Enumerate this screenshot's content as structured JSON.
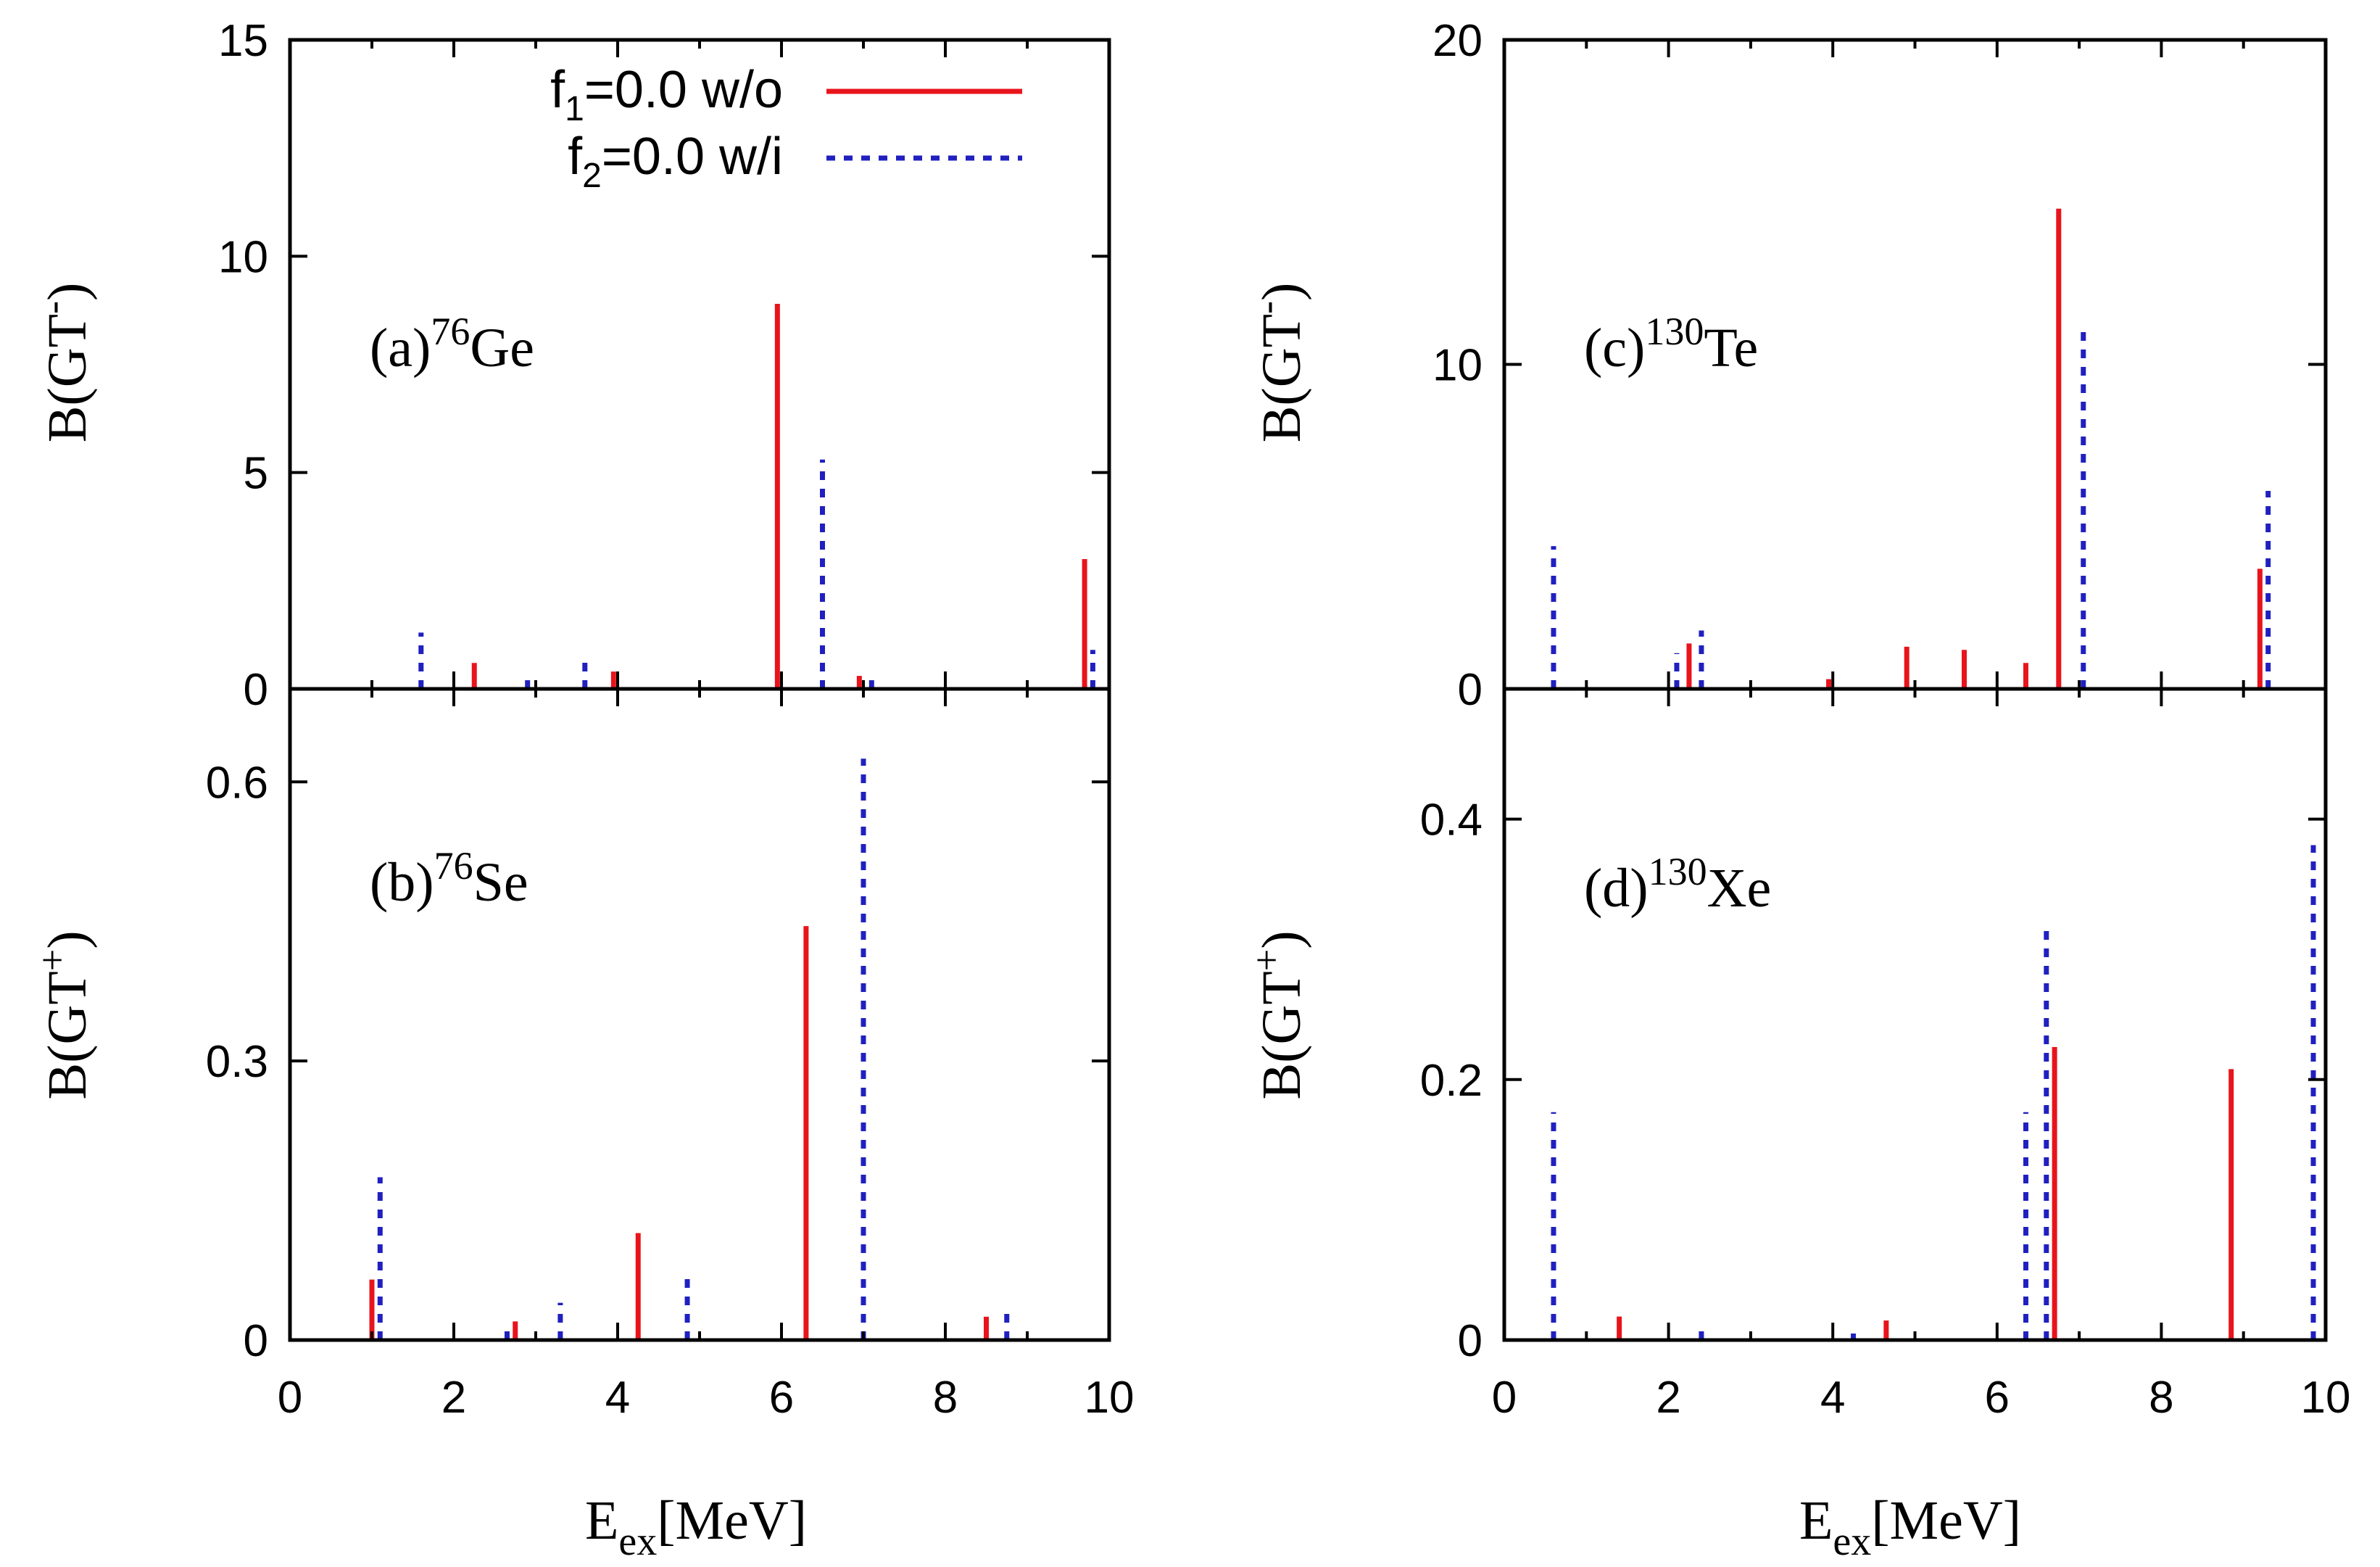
{
  "colors": {
    "series1": "#e8141c",
    "series2": "#2020c0",
    "axis": "#000000"
  },
  "legend": {
    "entries": [
      {
        "main": "f",
        "sub": "1",
        "rest": "=0.0 w/o",
        "series": 0
      },
      {
        "main": "f",
        "sub": "2",
        "rest": "=0.0  w/i",
        "series": 1
      }
    ]
  },
  "x_axis_title": {
    "main": "E",
    "sub": "ex",
    "rest": "[MeV]"
  },
  "chart_data": [
    {
      "type": "bar",
      "id": "a",
      "label_prefix": "(a)",
      "label_sup": "76",
      "label_elem": "Ge",
      "ylabel_main": "B(GT",
      "ylabel_sup": "-",
      "ylabel_end": ")",
      "xlim": [
        0,
        10
      ],
      "ylim": [
        0,
        15
      ],
      "xticks": [
        "0",
        "2",
        "4",
        "6",
        "8",
        "10"
      ],
      "yticks": [
        0,
        5,
        10,
        15
      ],
      "yticklabels": [
        "0",
        "5",
        "10",
        "15"
      ],
      "series": [
        {
          "name": "f1=0.0 w/o",
          "style": "solid",
          "x": [
            2.25,
            3.95,
            5.95,
            6.95,
            9.7
          ],
          "values": [
            0.6,
            0.4,
            8.9,
            0.3,
            3.0
          ]
        },
        {
          "name": "f2=0.0 w/i",
          "style": "dotted",
          "x": [
            1.6,
            2.9,
            3.6,
            6.5,
            7.1,
            9.8
          ],
          "values": [
            1.3,
            0.2,
            0.8,
            5.3,
            0.2,
            0.9
          ]
        }
      ]
    },
    {
      "type": "bar",
      "id": "b",
      "label_prefix": "(b)",
      "label_sup": "76",
      "label_elem": "Se",
      "ylabel_main": "B(GT",
      "ylabel_sup": "+",
      "ylabel_end": ")",
      "xlim": [
        0,
        10
      ],
      "ylim": [
        0,
        0.7
      ],
      "xticks": [
        "0",
        "2",
        "4",
        "6",
        "8",
        "10"
      ],
      "yticks": [
        0,
        0.3,
        0.6
      ],
      "yticklabels": [
        "0",
        "0.3",
        "0.6"
      ],
      "series": [
        {
          "name": "f1=0.0 w/o",
          "style": "solid",
          "x": [
            1.0,
            2.75,
            4.25,
            6.3,
            8.5
          ],
          "values": [
            0.065,
            0.02,
            0.115,
            0.445,
            0.025
          ]
        },
        {
          "name": "f2=0.0 w/i",
          "style": "dotted",
          "x": [
            1.1,
            2.65,
            3.3,
            4.85,
            7.0,
            8.75
          ],
          "values": [
            0.175,
            0.01,
            0.04,
            0.07,
            0.625,
            0.03
          ]
        }
      ]
    },
    {
      "type": "bar",
      "id": "c",
      "label_prefix": "(c)",
      "label_sup": "130",
      "label_elem": "Te",
      "ylabel_main": "B(GT",
      "ylabel_sup": "-",
      "ylabel_end": ")",
      "xlim": [
        0,
        10
      ],
      "ylim": [
        0,
        20
      ],
      "xticks": [
        "0",
        "2",
        "4",
        "6",
        "8",
        "10"
      ],
      "yticks": [
        0,
        10,
        20
      ],
      "yticklabels": [
        "0",
        "10",
        "20"
      ],
      "series": [
        {
          "name": "f1=0.0 w/o",
          "style": "solid",
          "x": [
            2.25,
            3.95,
            4.9,
            5.6,
            6.35,
            6.75,
            9.2
          ],
          "values": [
            1.4,
            0.3,
            1.3,
            1.2,
            0.8,
            14.8,
            3.7
          ]
        },
        {
          "name": "f2=0.0 w/i",
          "style": "dotted",
          "x": [
            0.6,
            2.1,
            2.4,
            7.05,
            9.3
          ],
          "values": [
            4.4,
            1.1,
            1.8,
            11.1,
            6.1
          ]
        }
      ]
    },
    {
      "type": "bar",
      "id": "d",
      "label_prefix": "(d)",
      "label_sup": "130",
      "label_elem": "Xe",
      "ylabel_main": "B(GT",
      "ylabel_sup": "+",
      "ylabel_end": ")",
      "xlim": [
        0,
        10
      ],
      "ylim": [
        0,
        0.5
      ],
      "xticks": [
        "0",
        "2",
        "4",
        "6",
        "8",
        "10"
      ],
      "yticks": [
        0,
        0.2,
        0.4
      ],
      "yticklabels": [
        "0",
        "0.2",
        "0.4"
      ],
      "series": [
        {
          "name": "f1=0.0 w/o",
          "style": "solid",
          "x": [
            1.4,
            4.65,
            6.7,
            8.85
          ],
          "values": [
            0.018,
            0.015,
            0.225,
            0.208
          ]
        },
        {
          "name": "f2=0.0 w/i",
          "style": "dotted",
          "x": [
            0.6,
            2.4,
            4.25,
            6.35,
            6.6,
            9.85
          ],
          "values": [
            0.175,
            0.008,
            0.005,
            0.175,
            0.32,
            0.38
          ]
        }
      ]
    }
  ]
}
